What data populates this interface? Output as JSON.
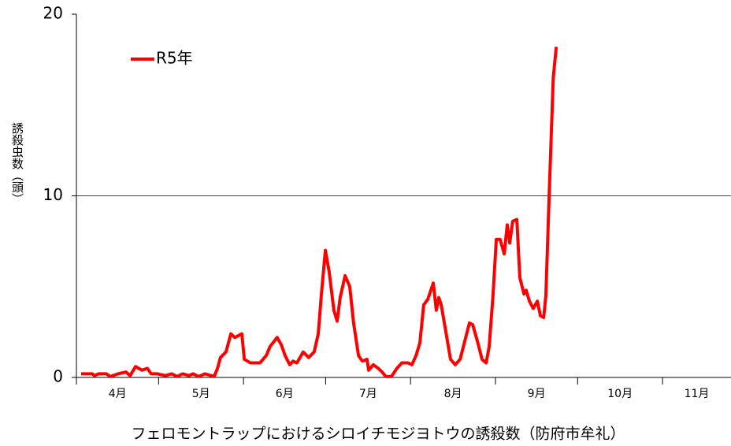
{
  "chart_data": {
    "type": "line",
    "title": "フェロモントラップにおけるシロイチモジヨトウの誘殺数（防府市牟礼）",
    "y_label": "誘殺虫数（頭）",
    "xlim": [
      0,
      239
    ],
    "xticks": [
      {
        "value": 0,
        "label": "4月"
      },
      {
        "value": 30,
        "label": "5月"
      },
      {
        "value": 61,
        "label": "6月"
      },
      {
        "value": 91,
        "label": "7月"
      },
      {
        "value": 122,
        "label": "8月"
      },
      {
        "value": 153,
        "label": "9月"
      },
      {
        "value": 183,
        "label": "10月"
      },
      {
        "value": 214,
        "label": "11月"
      }
    ],
    "ylim": [
      0,
      20
    ],
    "yticks": [
      0,
      10,
      20
    ],
    "grid": true,
    "legend": "upper left",
    "x": [
      1.7,
      5.8,
      6.6,
      8.1,
      10.9,
      12.4,
      15.2,
      18.1,
      19.6,
      21.6,
      23.9,
      25.9,
      27.3,
      29.6,
      32.5,
      34.8,
      36.8,
      38.8,
      41.1,
      42.6,
      44.6,
      46.9,
      49.2,
      50.3,
      51.5,
      52.6,
      54.6,
      56.4,
      57.8,
      60.4,
      61.3,
      63.6,
      67.0,
      69.3,
      70.7,
      73.3,
      74.8,
      76.2,
      77.9,
      79.1,
      80.5,
      82.8,
      84.8,
      86.8,
      88.3,
      89.4,
      90.9,
      92.3,
      94.0,
      95.2,
      96.3,
      98.1,
      99.8,
      101.2,
      103.0,
      104.4,
      106.1,
      106.7,
      108.4,
      110.2,
      111.6,
      113.0,
      115.0,
      117.0,
      118.8,
      121.1,
      122.5,
      124.0,
      125.4,
      126.8,
      128.3,
      130.3,
      131.4,
      132.3,
      133.2,
      134.9,
      136.6,
      138.3,
      140.1,
      141.8,
      143.5,
      144.7,
      146.4,
      148.1,
      149.6,
      150.7,
      152.1,
      153.3,
      154.7,
      156.2,
      157.3,
      158.2,
      159.3,
      160.8,
      161.9,
      163.4,
      164.2,
      165.4,
      166.8,
      168.3,
      169.4,
      170.6,
      171.4,
      172.6,
      174.1,
      175.2
    ],
    "series": [
      {
        "name": "R5年",
        "color": "#ff0000",
        "values": [
          0.2,
          0.2,
          0.1,
          0.2,
          0.2,
          0.05,
          0.2,
          0.3,
          0.1,
          0.6,
          0.4,
          0.5,
          0.2,
          0.2,
          0.1,
          0.2,
          0.05,
          0.2,
          0.1,
          0.2,
          0.05,
          0.2,
          0.1,
          0.05,
          0.5,
          1.1,
          1.4,
          2.4,
          2.2,
          2.4,
          1.0,
          0.8,
          0.8,
          1.2,
          1.7,
          2.2,
          1.8,
          1.2,
          0.7,
          0.9,
          0.8,
          1.4,
          1.1,
          1.4,
          2.4,
          4.5,
          7.0,
          5.8,
          3.7,
          3.1,
          4.4,
          5.6,
          5.0,
          3.0,
          1.2,
          0.9,
          1.0,
          0.4,
          0.7,
          0.5,
          0.3,
          0.05,
          0.05,
          0.5,
          0.8,
          0.8,
          0.7,
          1.2,
          1.9,
          4.0,
          4.3,
          5.2,
          3.7,
          4.4,
          4.0,
          2.5,
          1.0,
          0.7,
          1.0,
          2.0,
          3.0,
          2.9,
          2.0,
          1.0,
          0.8,
          1.7,
          4.5,
          7.6,
          7.6,
          6.8,
          8.4,
          7.4,
          8.6,
          8.7,
          5.5,
          4.6,
          4.8,
          4.2,
          3.8,
          4.2,
          3.4,
          3.3,
          4.5,
          10.0,
          16.5,
          18.2
        ]
      }
    ]
  }
}
